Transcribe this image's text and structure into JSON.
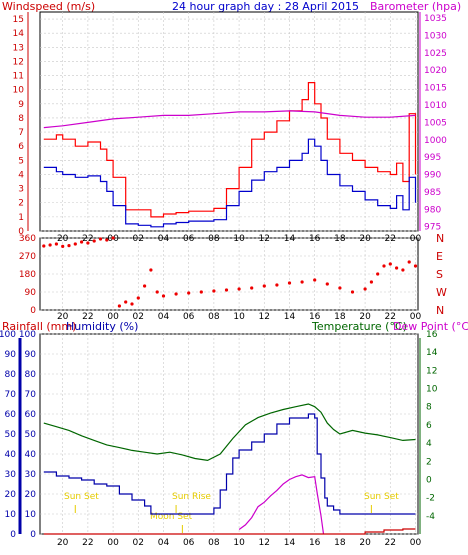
{
  "header": {
    "left_title": "Windspeed (m/s)",
    "center_title": "24 hour graph day : 28 April 2015",
    "right_title": "Barometer (hpa)"
  },
  "mid_labels": {
    "rainfall": "Rainfall (mm)",
    "humidity": "Humidity (%)",
    "temperature": "Temperature (°C)",
    "dewpoint": "Dew Point (°C)"
  },
  "annotations": {
    "sunset_1": "Sun Set",
    "sunrise": "Sun Rise",
    "moonset": "Moon Set",
    "sunset_2": "Sun Set"
  },
  "colors": {
    "wind_gust": "#ff0000",
    "wind_avg": "#0000cc",
    "barometer": "#cc00cc",
    "direction": "#ee0000",
    "rain": "#cc0000",
    "humidity": "#0000aa",
    "temperature": "#006600",
    "dewpoint": "#cc00cc",
    "grid": "#c8c8c8",
    "annotation": "#e6cc00"
  },
  "chart_data": [
    {
      "type": "line",
      "title": "24 hour graph day : 28 April 2015",
      "ylabel": "Windspeed (m/s)",
      "y2label": "Barometer (hpa)",
      "x_ticks": [
        "20",
        "22",
        "00",
        "02",
        "04",
        "06",
        "08",
        "10",
        "12",
        "14",
        "16",
        "18",
        "20",
        "22",
        "00"
      ],
      "x_hours": [
        -28,
        -26,
        -24,
        -22,
        -20,
        -18,
        -16,
        -14,
        -12,
        -10,
        -8,
        -6,
        -4,
        -2,
        0
      ],
      "y_ticks": [
        "0",
        "1",
        "2",
        "3",
        "4",
        "5",
        "6",
        "7",
        "8",
        "9",
        "10",
        "11",
        "12",
        "13",
        "14",
        "15"
      ],
      "y2_ticks": [
        "975",
        "980",
        "985",
        "990",
        "995",
        "1000",
        "1005",
        "1010",
        "1015",
        "1020",
        "1025",
        "1030",
        "1035"
      ],
      "ylim": [
        0,
        15.5
      ],
      "y2lim": [
        973.75,
        1036.75
      ],
      "series": [
        {
          "name": "",
          "kind": "gust",
          "x": [
            -29.5,
            -28.5,
            -28,
            -27,
            -26,
            -25,
            -24.5,
            -24,
            -23,
            -22,
            -21,
            -20,
            -19,
            -18,
            -17,
            -16,
            -15,
            -14,
            -13,
            -12,
            -11,
            -10,
            -9,
            -8.5,
            -8,
            -7.5,
            -7,
            -6,
            -5,
            -4,
            -3,
            -2,
            -1.5,
            -1,
            -0.5,
            0
          ],
          "y": [
            6.5,
            6.8,
            6.5,
            6.0,
            6.3,
            5.8,
            5.0,
            3.8,
            1.5,
            1.5,
            1.0,
            1.2,
            1.3,
            1.4,
            1.4,
            1.6,
            3.0,
            4.5,
            6.5,
            7.0,
            7.8,
            8.5,
            9.3,
            10.5,
            9.0,
            8.0,
            6.5,
            5.5,
            5.0,
            4.5,
            4.2,
            4.0,
            4.8,
            3.5,
            8.3,
            4.0
          ]
        },
        {
          "name": "",
          "kind": "avg",
          "x": [
            -29.5,
            -28.5,
            -28,
            -27,
            -26,
            -25,
            -24.5,
            -24,
            -23,
            -22,
            -21,
            -20,
            -19,
            -18,
            -17,
            -16,
            -15,
            -14,
            -13,
            -12,
            -11,
            -10,
            -9,
            -8.5,
            -8,
            -7.5,
            -7,
            -6,
            -5,
            -4,
            -3,
            -2,
            -1.5,
            -1,
            -0.5,
            0
          ],
          "y": [
            4.5,
            4.2,
            4.0,
            3.8,
            3.9,
            3.5,
            2.8,
            1.8,
            0.5,
            0.4,
            0.3,
            0.5,
            0.6,
            0.7,
            0.7,
            0.8,
            1.8,
            2.8,
            3.6,
            4.2,
            4.5,
            5.0,
            5.5,
            6.5,
            6.0,
            5.0,
            4.0,
            3.2,
            2.8,
            2.2,
            1.8,
            1.6,
            2.5,
            1.5,
            3.8,
            2.0
          ]
        },
        {
          "name": "",
          "kind": "baro",
          "x": [
            -29.5,
            -28,
            -26,
            -24,
            -22,
            -20,
            -18,
            -16,
            -14,
            -12,
            -10,
            -8,
            -6,
            -4,
            -2,
            0
          ],
          "y": [
            1003.5,
            1004,
            1005,
            1006,
            1006.5,
            1007,
            1007,
            1007.5,
            1008,
            1008,
            1008.3,
            1008,
            1007,
            1006.5,
            1006.5,
            1007
          ]
        }
      ]
    },
    {
      "type": "scatter",
      "y_ticks": [
        "0",
        "90",
        "180",
        "270",
        "360"
      ],
      "y_compass": [
        "N",
        "W",
        "S",
        "E",
        "N"
      ],
      "ylim": [
        0,
        360
      ],
      "series": [
        {
          "name": "",
          "x": [
            -29.5,
            -29,
            -28.5,
            -28,
            -27.5,
            -27,
            -26.5,
            -26,
            -25.5,
            -25,
            -24.5,
            -24,
            -23.5,
            -23,
            -22.5,
            -22,
            -21.5,
            -21,
            -20.5,
            -20,
            -19,
            -18,
            -17,
            -16,
            -15,
            -14,
            -13,
            -12,
            -11,
            -10,
            -9,
            -8,
            -7,
            -6,
            -5,
            -4,
            -3.5,
            -3,
            -2.5,
            -2,
            -1.5,
            -1,
            -0.5,
            0
          ],
          "y": [
            320,
            325,
            330,
            318,
            322,
            330,
            340,
            335,
            345,
            355,
            350,
            360,
            20,
            40,
            30,
            60,
            120,
            200,
            90,
            70,
            80,
            85,
            90,
            95,
            100,
            105,
            110,
            120,
            125,
            135,
            140,
            150,
            130,
            110,
            90,
            105,
            140,
            180,
            220,
            230,
            210,
            200,
            240,
            220
          ]
        }
      ]
    },
    {
      "type": "line",
      "ylabel": "Humidity (%)",
      "y2label": "Temperature (°C)",
      "y_ticks": [
        "0",
        "10",
        "20",
        "30",
        "40",
        "50",
        "60",
        "70",
        "80",
        "90",
        "100"
      ],
      "y2_ticks": [
        "-4",
        "-2",
        "0",
        "2",
        "4",
        "6",
        "8",
        "10",
        "12",
        "14",
        "16"
      ],
      "ylim": [
        0,
        100
      ],
      "y2lim": [
        -6,
        16
      ],
      "series": [
        {
          "name": "",
          "kind": "humidity",
          "x": [
            -29.5,
            -28.5,
            -27.5,
            -26.5,
            -25.5,
            -24.5,
            -23.5,
            -22.5,
            -21.5,
            -21,
            -20,
            -19,
            -18,
            -17,
            -16.5,
            -16,
            -15.5,
            -15,
            -14.5,
            -14,
            -13,
            -12,
            -11,
            -10,
            -9,
            -8.5,
            -8,
            -7.8,
            -7.5,
            -7.2,
            -7,
            -6.5,
            -6,
            -5,
            -4,
            -3,
            -2,
            -1,
            0
          ],
          "y": [
            31,
            29,
            28,
            27,
            25,
            24,
            20,
            17,
            14,
            10,
            10,
            10,
            10,
            10,
            10,
            13,
            22,
            30,
            38,
            42,
            46,
            50,
            55,
            58,
            58,
            60,
            58,
            40,
            28,
            18,
            14,
            12,
            10,
            10,
            10,
            10,
            10,
            10,
            10
          ]
        },
        {
          "name": "",
          "kind": "temperature",
          "x": [
            -29.5,
            -28.5,
            -27.5,
            -26.5,
            -25.5,
            -24.5,
            -23.5,
            -22.5,
            -21.5,
            -20.5,
            -19.5,
            -18.5,
            -17.5,
            -16.5,
            -15.5,
            -14.5,
            -13.5,
            -12.5,
            -11.5,
            -10.5,
            -9.5,
            -8.5,
            -8,
            -7.5,
            -7,
            -6.5,
            -6,
            -5,
            -4,
            -3,
            -2,
            -1,
            0
          ],
          "y": [
            6.2,
            5.8,
            5.4,
            4.8,
            4.3,
            3.8,
            3.5,
            3.2,
            3.0,
            2.8,
            3.0,
            2.7,
            2.3,
            2.1,
            2.8,
            4.5,
            6.0,
            6.8,
            7.3,
            7.7,
            8.0,
            8.3,
            8.0,
            7.4,
            6.2,
            5.5,
            5.0,
            5.4,
            5.1,
            4.9,
            4.6,
            4.3,
            4.4
          ]
        },
        {
          "name": "",
          "kind": "dewpoint",
          "x": [
            -14,
            -13.5,
            -13,
            -12.5,
            -12,
            -11.5,
            -11,
            -10.5,
            -10,
            -9.5,
            -9,
            -8.5,
            -8,
            -7.8,
            -7.5,
            -7.3
          ],
          "y": [
            -5.5,
            -5,
            -4.2,
            -3,
            -2.5,
            -1.8,
            -1.2,
            -0.5,
            0,
            0.3,
            0.5,
            0.2,
            0.3,
            -1.5,
            -4,
            -6
          ]
        },
        {
          "name": "",
          "kind": "rain",
          "x": [
            -29.5,
            -28,
            -26,
            -24,
            -22,
            -20,
            -18,
            -16,
            -14,
            -12,
            -10,
            -8,
            -6,
            -4,
            -2.5,
            -2,
            -1,
            0
          ],
          "y": [
            0,
            0,
            0,
            0,
            0,
            0,
            0,
            0,
            0,
            0,
            0,
            0,
            0,
            1,
            2,
            2,
            2.5,
            2.5
          ]
        }
      ]
    }
  ]
}
